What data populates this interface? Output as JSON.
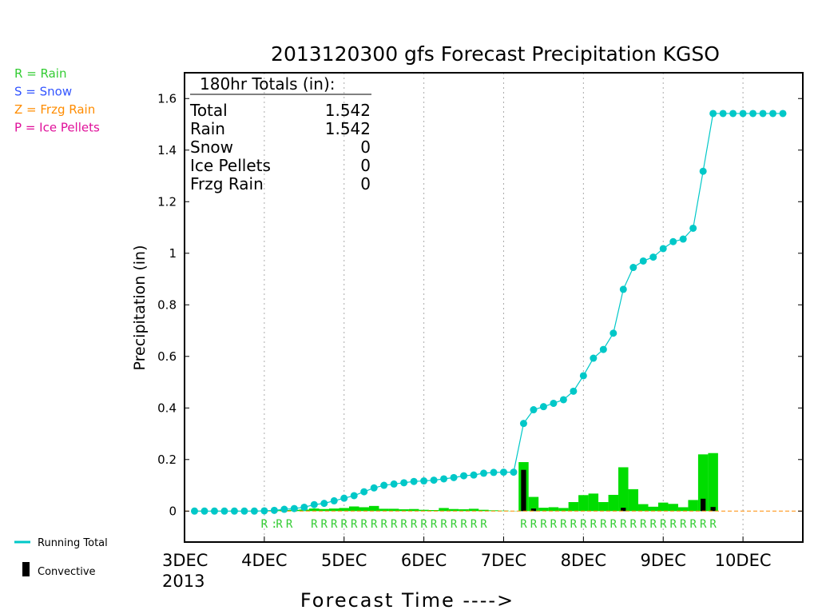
{
  "chart_data": {
    "type": "bar",
    "title": "2013120300 gfs Forecast Precipitation KGSO",
    "ylabel": "Precipitation (in)",
    "xlabel": "Forecast Time ---->",
    "ylim": [
      -0.12,
      1.7
    ],
    "y_ticks": [
      0,
      0.2,
      0.4,
      0.6,
      0.8,
      1,
      1.2,
      1.4,
      1.6
    ],
    "y_tick_labels": [
      "0",
      "0.2",
      "0.4",
      "0.6",
      "0.8",
      "1",
      "1.2",
      "1.4",
      "1.6"
    ],
    "x_range_hours": [
      0,
      186
    ],
    "x_ticks": [
      {
        "hour": 0,
        "label": "3DEC",
        "sublabel": "2013"
      },
      {
        "hour": 24,
        "label": "4DEC"
      },
      {
        "hour": 48,
        "label": "5DEC"
      },
      {
        "hour": 72,
        "label": "6DEC"
      },
      {
        "hour": 96,
        "label": "7DEC"
      },
      {
        "hour": 120,
        "label": "8DEC"
      },
      {
        "hour": 144,
        "label": "9DEC"
      },
      {
        "hour": 168,
        "label": "10DEC"
      }
    ],
    "grid": "dotted vertical at each day",
    "legend": {
      "types": [
        {
          "text": "R = Rain",
          "color": "#33cc33"
        },
        {
          "text": "S = Snow",
          "color": "#3355ff"
        },
        {
          "text": "Z = Frzg Rain",
          "color": "#ff8c00"
        },
        {
          "text": "P = Ice Pellets",
          "color": "#e0109a"
        }
      ],
      "running_total": "Running Total",
      "convective": "Convective"
    },
    "totals_box": {
      "header": "180hr Totals (in):",
      "rows": [
        {
          "label": "Total",
          "value": "1.542"
        },
        {
          "label": "Rain",
          "value": "1.542"
        },
        {
          "label": "Snow",
          "value": "0"
        },
        {
          "label": "Ice Pellets",
          "value": "0"
        },
        {
          "label": "Frzg Rain",
          "value": "0"
        }
      ]
    },
    "colors": {
      "total_bar": "#00dd00",
      "convective": "#000000",
      "running_total": "#00c8c8",
      "ptype_rain": "#33cc33",
      "zero_line": "#ff8c00"
    },
    "bar_width_hours": 3,
    "bars": [
      {
        "hour": 24,
        "total": 0.002,
        "conv": 0
      },
      {
        "hour": 27,
        "total": 0.003,
        "conv": 0
      },
      {
        "hour": 30,
        "total": 0.004,
        "conv": 0
      },
      {
        "hour": 33,
        "total": 0.005,
        "conv": 0
      },
      {
        "hour": 36,
        "total": 0.006,
        "conv": 0
      },
      {
        "hour": 39,
        "total": 0.01,
        "conv": 0
      },
      {
        "hour": 42,
        "total": 0.008,
        "conv": 0
      },
      {
        "hour": 45,
        "total": 0.01,
        "conv": 0
      },
      {
        "hour": 48,
        "total": 0.012,
        "conv": 0
      },
      {
        "hour": 51,
        "total": 0.018,
        "conv": 0
      },
      {
        "hour": 54,
        "total": 0.015,
        "conv": 0
      },
      {
        "hour": 57,
        "total": 0.02,
        "conv": 0
      },
      {
        "hour": 60,
        "total": 0.009,
        "conv": 0
      },
      {
        "hour": 63,
        "total": 0.009,
        "conv": 0
      },
      {
        "hour": 66,
        "total": 0.007,
        "conv": 0
      },
      {
        "hour": 69,
        "total": 0.008,
        "conv": 0
      },
      {
        "hour": 72,
        "total": 0.005,
        "conv": 0
      },
      {
        "hour": 75,
        "total": 0.004,
        "conv": 0
      },
      {
        "hour": 78,
        "total": 0.012,
        "conv": 0
      },
      {
        "hour": 81,
        "total": 0.008,
        "conv": 0
      },
      {
        "hour": 84,
        "total": 0.007,
        "conv": 0
      },
      {
        "hour": 87,
        "total": 0.009,
        "conv": 0
      },
      {
        "hour": 90,
        "total": 0.005,
        "conv": 0
      },
      {
        "hour": 93,
        "total": 0.003,
        "conv": 0
      },
      {
        "hour": 96,
        "total": 0.002,
        "conv": 0
      },
      {
        "hour": 99,
        "total": 0.001,
        "conv": 0
      },
      {
        "hour": 102,
        "total": 0.19,
        "conv": 0.16
      },
      {
        "hour": 105,
        "total": 0.055,
        "conv": 0.01
      },
      {
        "hour": 108,
        "total": 0.013,
        "conv": 0
      },
      {
        "hour": 111,
        "total": 0.015,
        "conv": 0
      },
      {
        "hour": 114,
        "total": 0.012,
        "conv": 0
      },
      {
        "hour": 117,
        "total": 0.035,
        "conv": 0
      },
      {
        "hour": 120,
        "total": 0.062,
        "conv": 0
      },
      {
        "hour": 123,
        "total": 0.068,
        "conv": 0
      },
      {
        "hour": 126,
        "total": 0.035,
        "conv": 0
      },
      {
        "hour": 129,
        "total": 0.063,
        "conv": 0
      },
      {
        "hour": 132,
        "total": 0.17,
        "conv": 0.013
      },
      {
        "hour": 135,
        "total": 0.085,
        "conv": 0
      },
      {
        "hour": 138,
        "total": 0.027,
        "conv": 0
      },
      {
        "hour": 141,
        "total": 0.017,
        "conv": 0
      },
      {
        "hour": 144,
        "total": 0.033,
        "conv": 0
      },
      {
        "hour": 147,
        "total": 0.028,
        "conv": 0
      },
      {
        "hour": 150,
        "total": 0.015,
        "conv": 0
      },
      {
        "hour": 153,
        "total": 0.043,
        "conv": 0
      },
      {
        "hour": 156,
        "total": 0.22,
        "conv": 0.048
      },
      {
        "hour": 159,
        "total": 0.225,
        "conv": 0.016
      }
    ],
    "running_total": [
      {
        "hour": 3,
        "value": 0
      },
      {
        "hour": 6,
        "value": 0
      },
      {
        "hour": 9,
        "value": 0
      },
      {
        "hour": 12,
        "value": 0
      },
      {
        "hour": 15,
        "value": 0
      },
      {
        "hour": 18,
        "value": 0
      },
      {
        "hour": 21,
        "value": 0
      },
      {
        "hour": 24,
        "value": 0.001
      },
      {
        "hour": 27,
        "value": 0.003
      },
      {
        "hour": 30,
        "value": 0.007
      },
      {
        "hour": 33,
        "value": 0.01
      },
      {
        "hour": 36,
        "value": 0.015
      },
      {
        "hour": 39,
        "value": 0.025
      },
      {
        "hour": 42,
        "value": 0.03
      },
      {
        "hour": 45,
        "value": 0.04
      },
      {
        "hour": 48,
        "value": 0.05
      },
      {
        "hour": 51,
        "value": 0.06
      },
      {
        "hour": 54,
        "value": 0.075
      },
      {
        "hour": 57,
        "value": 0.09
      },
      {
        "hour": 60,
        "value": 0.1
      },
      {
        "hour": 63,
        "value": 0.105
      },
      {
        "hour": 66,
        "value": 0.11
      },
      {
        "hour": 69,
        "value": 0.115
      },
      {
        "hour": 72,
        "value": 0.117
      },
      {
        "hour": 75,
        "value": 0.12
      },
      {
        "hour": 78,
        "value": 0.125
      },
      {
        "hour": 81,
        "value": 0.13
      },
      {
        "hour": 84,
        "value": 0.137
      },
      {
        "hour": 87,
        "value": 0.14
      },
      {
        "hour": 90,
        "value": 0.147
      },
      {
        "hour": 93,
        "value": 0.15
      },
      {
        "hour": 96,
        "value": 0.151
      },
      {
        "hour": 99,
        "value": 0.151
      },
      {
        "hour": 102,
        "value": 0.34
      },
      {
        "hour": 105,
        "value": 0.393
      },
      {
        "hour": 108,
        "value": 0.405
      },
      {
        "hour": 111,
        "value": 0.418
      },
      {
        "hour": 114,
        "value": 0.432
      },
      {
        "hour": 117,
        "value": 0.465
      },
      {
        "hour": 120,
        "value": 0.525
      },
      {
        "hour": 123,
        "value": 0.593
      },
      {
        "hour": 126,
        "value": 0.627
      },
      {
        "hour": 129,
        "value": 0.69
      },
      {
        "hour": 132,
        "value": 0.86
      },
      {
        "hour": 135,
        "value": 0.945
      },
      {
        "hour": 138,
        "value": 0.97
      },
      {
        "hour": 141,
        "value": 0.985
      },
      {
        "hour": 144,
        "value": 1.018
      },
      {
        "hour": 147,
        "value": 1.045
      },
      {
        "hour": 150,
        "value": 1.055
      },
      {
        "hour": 153,
        "value": 1.097
      },
      {
        "hour": 156,
        "value": 1.318
      },
      {
        "hour": 159,
        "value": 1.542
      },
      {
        "hour": 162,
        "value": 1.542
      },
      {
        "hour": 165,
        "value": 1.542
      },
      {
        "hour": 168,
        "value": 1.542
      },
      {
        "hour": 171,
        "value": 1.542
      },
      {
        "hour": 174,
        "value": 1.542
      },
      {
        "hour": 177,
        "value": 1.542
      },
      {
        "hour": 180,
        "value": 1.542
      }
    ],
    "ptype_markers": [
      {
        "hour": 24,
        "label": "R"
      },
      {
        "hour": 27,
        "label": ":"
      },
      {
        "hour": 28.5,
        "label": "R"
      },
      {
        "hour": 31.5,
        "label": "R"
      },
      {
        "hour": 39,
        "label": "R"
      },
      {
        "hour": 42,
        "label": "R"
      },
      {
        "hour": 45,
        "label": "R"
      },
      {
        "hour": 48,
        "label": "R"
      },
      {
        "hour": 51,
        "label": "R"
      },
      {
        "hour": 54,
        "label": "R"
      },
      {
        "hour": 57,
        "label": "R"
      },
      {
        "hour": 60,
        "label": "R"
      },
      {
        "hour": 63,
        "label": "R"
      },
      {
        "hour": 66,
        "label": "R"
      },
      {
        "hour": 69,
        "label": "R"
      },
      {
        "hour": 72,
        "label": "R"
      },
      {
        "hour": 75,
        "label": "R"
      },
      {
        "hour": 78,
        "label": "R"
      },
      {
        "hour": 81,
        "label": "R"
      },
      {
        "hour": 84,
        "label": "R"
      },
      {
        "hour": 87,
        "label": "R"
      },
      {
        "hour": 90,
        "label": "R"
      },
      {
        "hour": 102,
        "label": "R"
      },
      {
        "hour": 105,
        "label": "R"
      },
      {
        "hour": 108,
        "label": "R"
      },
      {
        "hour": 111,
        "label": "R"
      },
      {
        "hour": 114,
        "label": "R"
      },
      {
        "hour": 117,
        "label": "R"
      },
      {
        "hour": 120,
        "label": "R"
      },
      {
        "hour": 123,
        "label": "R"
      },
      {
        "hour": 126,
        "label": "R"
      },
      {
        "hour": 129,
        "label": "R"
      },
      {
        "hour": 132,
        "label": "R"
      },
      {
        "hour": 135,
        "label": "R"
      },
      {
        "hour": 138,
        "label": "R"
      },
      {
        "hour": 141,
        "label": "R"
      },
      {
        "hour": 144,
        "label": "R"
      },
      {
        "hour": 147,
        "label": "R"
      },
      {
        "hour": 150,
        "label": "R"
      },
      {
        "hour": 153,
        "label": "R"
      },
      {
        "hour": 156,
        "label": "R"
      },
      {
        "hour": 159,
        "label": "R"
      }
    ]
  }
}
